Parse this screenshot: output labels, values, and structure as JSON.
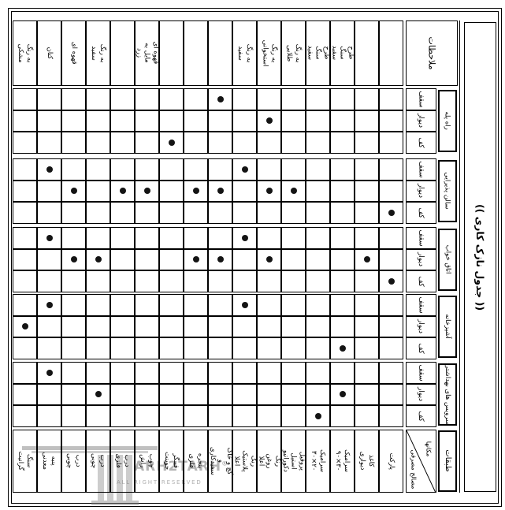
{
  "page": {
    "title": "(( جدول نازک کاری ))",
    "notes_header": "ملاحظات",
    "floors_header": "طبقات",
    "corner": {
      "places_label": "مکانها",
      "materials_label": "مصالح مصرفی"
    },
    "sub_rows": [
      "سقف",
      "دیوار",
      "کف"
    ],
    "columns": [
      {
        "color": "به رنگ مشکی",
        "material": "سنگ گرانیت"
      },
      {
        "color": "کتان",
        "material": "پنبه معدنی"
      },
      {
        "color": "قهوه ای",
        "material": "درب چوبی"
      },
      {
        "color": "به رنگ سفید",
        "material": "درب چوبی"
      },
      {
        "color": "",
        "material": "درب فلزی"
      },
      {
        "color": "قهوه ای مایل به زرد",
        "material": "چوب راش"
      },
      {
        "color": "",
        "material": "فینگر جوینت"
      },
      {
        "color": "",
        "material": "پنجره فلزی"
      },
      {
        "color": "",
        "material": "گچ و خاک و سفیدکاری"
      },
      {
        "color": "به رنگ سفید",
        "material": "رنگ پلاستیک اعلا"
      },
      {
        "color": "به رنگ استخوانی",
        "material": "رنگ روغن اعلا"
      },
      {
        "color": "به رنگ طلایی",
        "material": "پروفیل استیل دکوراتیو"
      },
      {
        "color": "طرح سنگ سفید",
        "material": "سرامیک ۲۰×۳۰"
      },
      {
        "color": "طرح سنگ سفید",
        "material": "سرامیک ۳۰×۹۰"
      },
      {
        "color": "",
        "material": "کاغذ دیواری"
      },
      {
        "color": "",
        "material": "پارکت"
      }
    ],
    "groups": [
      {
        "name": "راه پله",
        "marks": [
          [
            9
          ],
          [
            11
          ],
          [
            7
          ]
        ]
      },
      {
        "name": "سالن پذیرایی",
        "marks": [
          [
            2,
            10
          ],
          [
            3,
            5,
            6,
            8,
            9,
            11,
            12
          ],
          [
            16
          ]
        ]
      },
      {
        "name": "اتاق خواب",
        "marks": [
          [
            2,
            10
          ],
          [
            3,
            4,
            8,
            9,
            11,
            15
          ],
          [
            16
          ]
        ]
      },
      {
        "name": "آشپزخانه",
        "marks": [
          [
            2,
            10
          ],
          [
            1
          ],
          [
            14
          ]
        ]
      },
      {
        "name": "سرویس های بهداشتی",
        "marks": [
          [
            2
          ],
          [
            4,
            14
          ],
          [
            13
          ]
        ]
      }
    ],
    "watermark": {
      "brand": "ARH2TARH",
      "registered": "®",
      "caption": "ALL RIGHT RESERVED"
    },
    "colors": {
      "ink": "#000000",
      "paper": "#ffffff",
      "watermark": "#9a9a9a"
    }
  }
}
